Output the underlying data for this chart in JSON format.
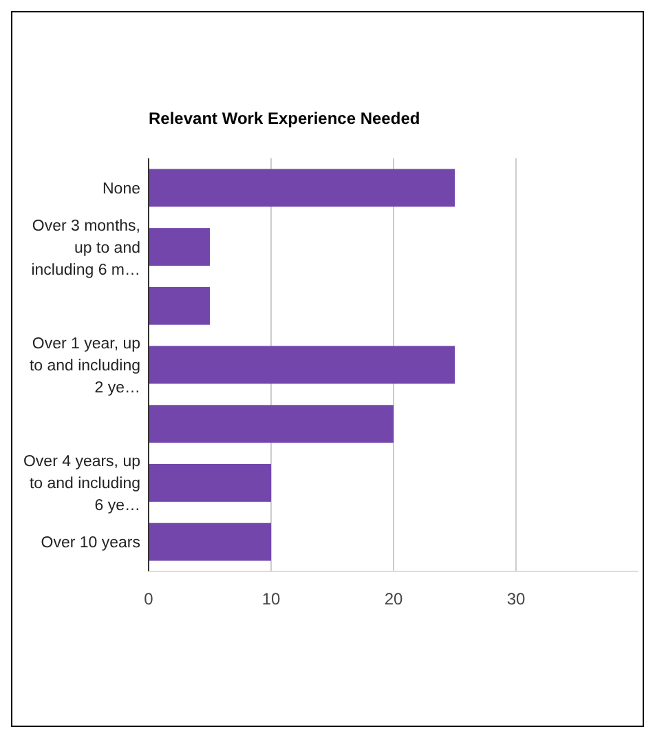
{
  "chart_data": {
    "type": "bar",
    "orientation": "horizontal",
    "title": "Relevant Work Experience Needed",
    "categories": [
      "None",
      "Over 3 months, up to and including 6 m…",
      null,
      "Over 1 year, up to and including 2 ye…",
      null,
      "Over 4 years, up to and including 6 ye…",
      "Over 10 years"
    ],
    "values": [
      25,
      5,
      5,
      25,
      20,
      10,
      10
    ],
    "color": "#7346ac",
    "xlim": [
      0,
      40
    ],
    "xticks": [
      0,
      10,
      20,
      30
    ],
    "grid": "x"
  }
}
